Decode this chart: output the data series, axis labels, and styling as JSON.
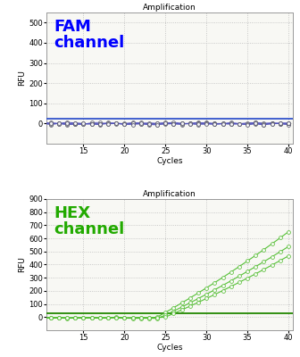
{
  "title": "Amplification",
  "xlabel": "Cycles",
  "ylabel": "RFU",
  "fam_ylim": [
    -100,
    550
  ],
  "fam_yticks": [
    0,
    100,
    200,
    300,
    400,
    500
  ],
  "fam_label": "FAM\nchannel",
  "fam_label_color": "#0000ff",
  "fam_line_color": "#5555bb",
  "fam_threshold": 25,
  "fam_threshold_color": "#3355cc",
  "hex_ylim": [
    -100,
    900
  ],
  "hex_yticks": [
    0,
    100,
    200,
    300,
    400,
    500,
    600,
    700,
    800,
    900
  ],
  "hex_label": "HEX\nchannel",
  "hex_label_color": "#22aa00",
  "hex_line_color": "#44bb22",
  "hex_threshold": 30,
  "hex_threshold_color": "#228800",
  "xlim": [
    10.5,
    40.5
  ],
  "xticks": [
    15,
    20,
    25,
    30,
    35,
    40
  ],
  "background_color": "#f8f8f4",
  "grid_color": "#bbbbbb",
  "marker_color_fam": "#555566",
  "marker_color_hex": "#55bb33"
}
